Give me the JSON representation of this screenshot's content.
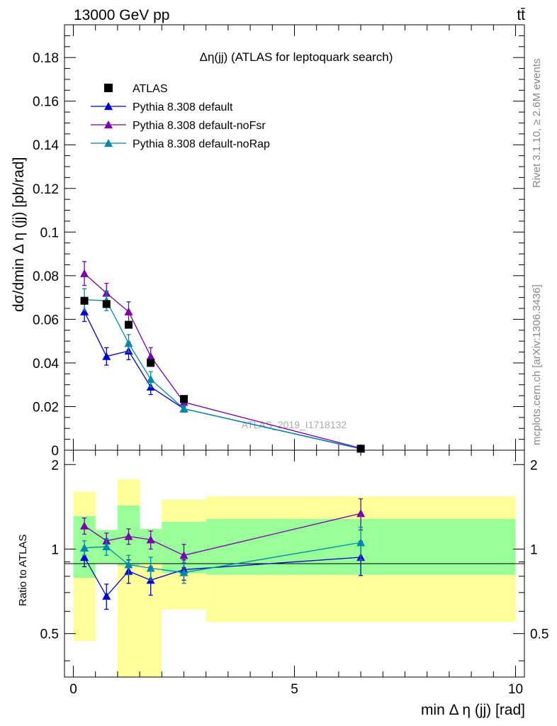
{
  "header": {
    "energy_label": "13000 GeV pp",
    "process_label": "tt̄"
  },
  "side_labels": {
    "rivet": "Rivet 3.1.10, ≥ 2.6M events",
    "mcplots": "mcplots.cern.ch [arXiv:1306.3436]"
  },
  "chart_data": {
    "type": "line",
    "title": "Δη(jj) (ATLAS for leptoquark search)",
    "watermark": "ATLAS_2019_I1718132",
    "xlabel": "min Δ η (jj) [rad]",
    "ylabel": "dσ/dmin Δ η (jj) [pb/rad]",
    "ratio_ylabel": "Ratio to ATLAS",
    "xlim": [
      -0.2,
      10.2
    ],
    "ylim": [
      0,
      0.195
    ],
    "ratio_ylim": [
      0.35,
      2.25
    ],
    "x_ticks": [
      0,
      5,
      10
    ],
    "y_ticks": [
      "0",
      "0.02",
      "0.04",
      "0.06",
      "0.08",
      "0.1",
      "0.12",
      "0.14",
      "0.16",
      "0.18"
    ],
    "ratio_ticks": [
      "0.5",
      "1",
      "2"
    ],
    "bins": [
      [
        0,
        0.5
      ],
      [
        0.5,
        1.0
      ],
      [
        1.0,
        1.5
      ],
      [
        1.5,
        2.0
      ],
      [
        2.0,
        3.0
      ],
      [
        3.0,
        10.0
      ]
    ],
    "x": [
      0.25,
      0.75,
      1.25,
      1.75,
      2.5,
      6.5
    ],
    "colors": {
      "data": "#000000",
      "default": "#0000cc",
      "noFsr": "#7700aa",
      "noRap": "#0088aa",
      "band_inner": "#99ff99",
      "band_outer": "#ffff99"
    },
    "data": {
      "name": "ATLAS",
      "values": [
        0.0685,
        0.067,
        0.0575,
        0.04,
        0.0235,
        0.0007
      ],
      "band_inner": [
        [
          0.79,
          1.31
        ],
        [
          0.89,
          1.17
        ],
        [
          0.87,
          1.43
        ],
        [
          0.89,
          1.18
        ],
        [
          0.82,
          1.25
        ],
        [
          0.81,
          1.28
        ]
      ],
      "band_outer": [
        [
          0.47,
          1.6
        ],
        [
          0.89,
          1.17
        ],
        [
          0.34,
          1.77
        ],
        [
          0.34,
          1.17
        ],
        [
          0.61,
          1.5
        ],
        [
          0.55,
          1.54
        ]
      ]
    },
    "series": [
      {
        "name": "Pythia 8.308 default",
        "color_key": "default",
        "values": [
          0.0635,
          0.043,
          0.0455,
          0.029,
          0.019,
          0.0006
        ],
        "errors": [
          0.0045,
          0.004,
          0.004,
          0.0035,
          0.0015,
          0.0001
        ],
        "ratio": [
          0.935,
          0.68,
          0.835,
          0.775,
          0.845,
          0.935
        ],
        "ratio_err": [
          0.07,
          0.07,
          0.08,
          0.09,
          0.07,
          0.13
        ]
      },
      {
        "name": "Pythia 8.308 default-noFsr",
        "color_key": "noFsr",
        "values": [
          0.081,
          0.072,
          0.0635,
          0.043,
          0.022,
          0.0009
        ],
        "errors": [
          0.0055,
          0.0045,
          0.0045,
          0.004,
          0.002,
          0.0001
        ],
        "ratio": [
          1.21,
          1.07,
          1.11,
          1.08,
          0.95,
          1.34
        ],
        "ratio_err": [
          0.08,
          0.07,
          0.07,
          0.08,
          0.09,
          0.17
        ]
      },
      {
        "name": "Pythia 8.308 default-noRap",
        "color_key": "noRap",
        "values": [
          0.069,
          0.0685,
          0.049,
          0.0325,
          0.019,
          0.0007
        ],
        "errors": [
          0.005,
          0.0045,
          0.004,
          0.0035,
          0.0015,
          0.0001
        ],
        "ratio": [
          1.01,
          1.02,
          0.88,
          0.855,
          0.825,
          1.055
        ],
        "ratio_err": [
          0.06,
          0.07,
          0.07,
          0.08,
          0.07,
          0.14
        ]
      }
    ],
    "legend_position": "top-left"
  }
}
